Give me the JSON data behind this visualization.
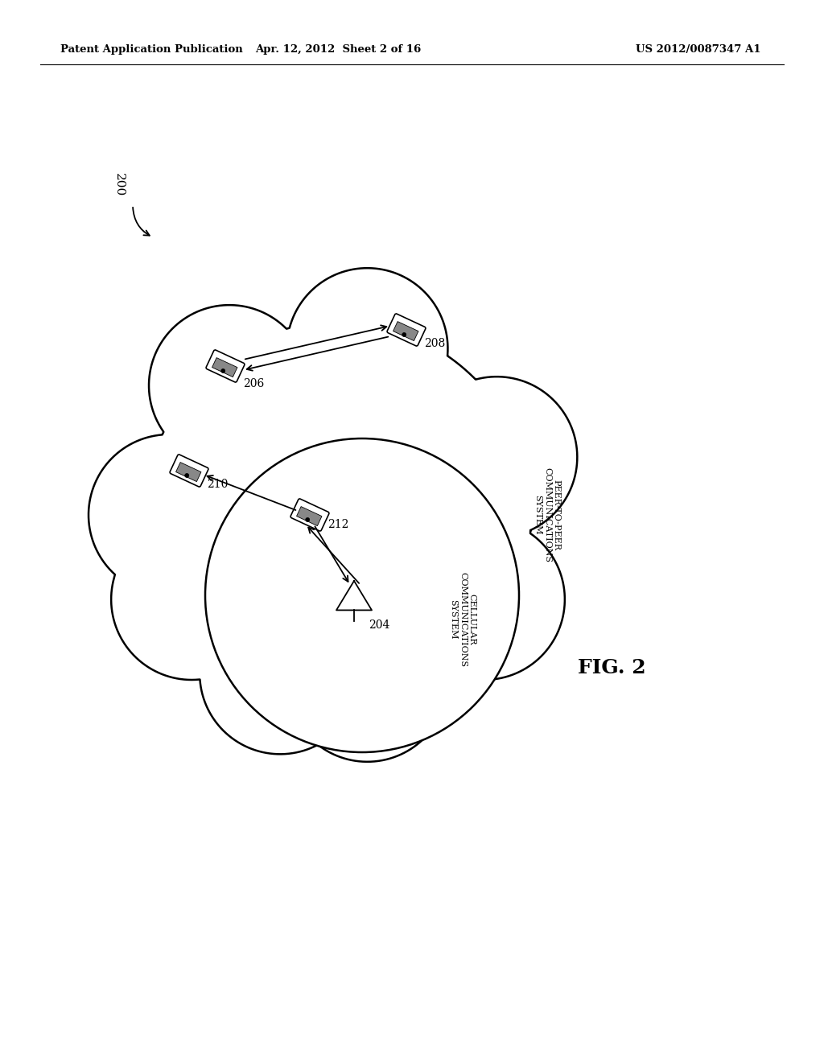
{
  "header_left": "Patent Application Publication",
  "header_mid": "Apr. 12, 2012  Sheet 2 of 16",
  "header_right": "US 2012/0087347 A1",
  "fig_label": "FIG. 2",
  "label_200": "200",
  "label_204": "204",
  "label_206": "206",
  "label_208": "208",
  "label_210": "210",
  "label_212": "212",
  "cellular_label": "CELLULAR\nCOMMUNICATIONS\nSYSTEM",
  "p2p_label": "PEER-TO-PEER\nCOMMUNICATIONS\nSYSTEM",
  "background_color": "#ffffff",
  "line_color": "#000000"
}
